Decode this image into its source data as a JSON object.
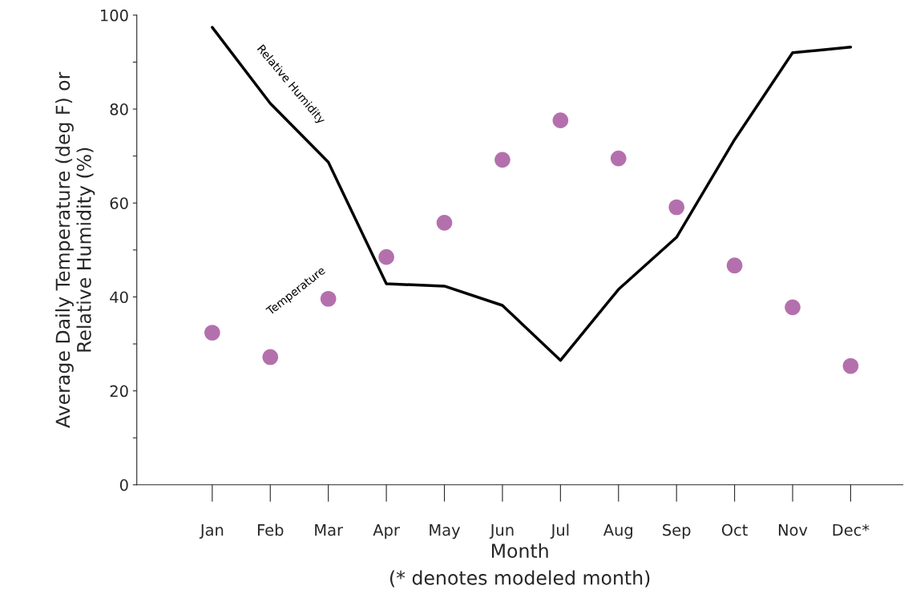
{
  "chart_data": {
    "type": "line",
    "xlabel": "Month\n(* denotes modeled month)",
    "ylabel": "Average Daily Temperature (deg F) or\nRelative Humidity (%)",
    "categories": [
      "Jan",
      "Feb",
      "Mar",
      "Apr",
      "May",
      "Jun",
      "Jul",
      "Aug",
      "Sep",
      "Oct",
      "Nov",
      "Dec*"
    ],
    "series": [
      {
        "name": "Relative Humidity",
        "color": "#000000",
        "marker": "none",
        "line_style": "solid",
        "values": [
          97.4,
          81.2,
          68.7,
          42.8,
          42.3,
          38.2,
          26.5,
          41.6,
          52.7,
          73.5,
          92.0,
          93.2
        ]
      },
      {
        "name": "Temperature",
        "type": "scatter",
        "color": "#b470ad",
        "marker": "circle",
        "values": [
          32.4,
          27.2,
          39.6,
          48.5,
          55.8,
          69.2,
          77.6,
          69.5,
          59.1,
          46.7,
          37.8,
          25.3
        ]
      }
    ],
    "ylim": [
      0,
      100
    ],
    "yticks": [
      0,
      {
        "value": 10,
        "label": null
      },
      20,
      {
        "value": 30,
        "label": null
      },
      40,
      {
        "value": 50,
        "label": null
      },
      60,
      {
        "value": 70,
        "label": null
      },
      80,
      {
        "value": 90,
        "label": null
      },
      100
    ],
    "grid": false,
    "legend": false
  }
}
